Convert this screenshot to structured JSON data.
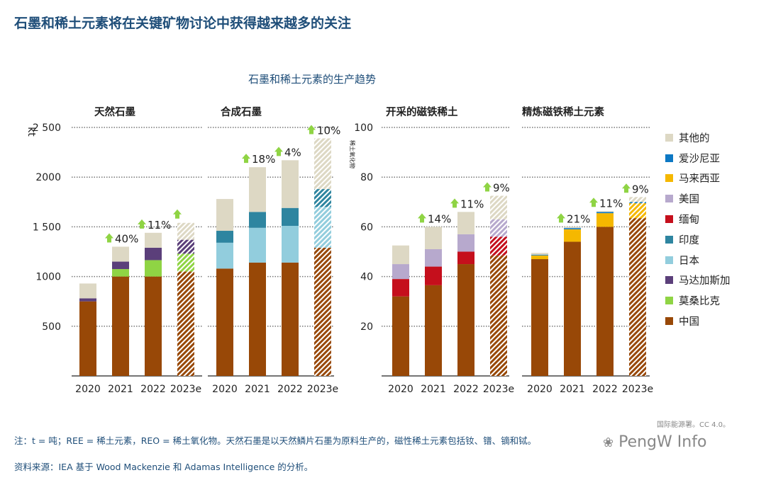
{
  "title": "石墨和稀土元素将在关键矿物讨论中获得越来越多的关注",
  "subtitle": "石墨和稀土元素的生产趋势",
  "chart_data": [
    {
      "type": "bar",
      "stacked": true,
      "title": "天然石墨",
      "ylabel": "kt",
      "ylim": [
        0,
        2500
      ],
      "yticks": [
        "2 500",
        "2000",
        "1 500",
        "1000",
        "500"
      ],
      "categories": [
        "2020",
        "2021",
        "2022",
        "2023e"
      ],
      "estimated": [
        false,
        false,
        false,
        true
      ],
      "series": [
        {
          "name": "中国",
          "values": [
            750,
            1000,
            1000,
            1050
          ]
        },
        {
          "name": "莫桑比克",
          "values": [
            0,
            75,
            165,
            180
          ]
        },
        {
          "name": "马达加斯加",
          "values": [
            30,
            75,
            125,
            140
          ]
        },
        {
          "name": "其他的",
          "values": [
            150,
            150,
            150,
            170
          ]
        }
      ],
      "growth": [
        "",
        "40%",
        "11%",
        ""
      ]
    },
    {
      "type": "bar",
      "stacked": true,
      "title": "合成石墨",
      "ylim": [
        0,
        2500
      ],
      "categories": [
        "2020",
        "2021",
        "2022",
        "2023e"
      ],
      "estimated": [
        false,
        false,
        false,
        true
      ],
      "series": [
        {
          "name": "中国",
          "values": [
            1080,
            1140,
            1140,
            1290
          ]
        },
        {
          "name": "日本",
          "values": [
            260,
            350,
            370,
            410
          ]
        },
        {
          "name": "印度",
          "values": [
            120,
            160,
            180,
            180
          ]
        },
        {
          "name": "其他的",
          "values": [
            320,
            450,
            480,
            510
          ]
        }
      ],
      "growth": [
        "",
        "18%",
        "4%",
        "10%"
      ]
    },
    {
      "type": "bar",
      "stacked": true,
      "title": "开采的磁铁稀土",
      "ylabel": "稀土氧化物",
      "ylim": [
        0,
        100
      ],
      "yticks": [
        "100",
        "80",
        "60",
        "40",
        "20"
      ],
      "categories": [
        "2020",
        "2021",
        "2022",
        "2023e"
      ],
      "estimated": [
        false,
        false,
        false,
        true
      ],
      "series": [
        {
          "name": "中国",
          "values": [
            32,
            36.5,
            45,
            48.5
          ]
        },
        {
          "name": "缅甸",
          "values": [
            7,
            7.5,
            5,
            7.5
          ]
        },
        {
          "name": "美国",
          "values": [
            6,
            7,
            7,
            7
          ]
        },
        {
          "name": "其他的",
          "values": [
            7.5,
            9,
            9,
            9.5
          ]
        }
      ],
      "growth": [
        "",
        "14%",
        "11%",
        "9%"
      ]
    },
    {
      "type": "bar",
      "stacked": true,
      "title": "精炼磁铁稀土元素",
      "ylim": [
        0,
        100
      ],
      "categories": [
        "2020",
        "2021",
        "2022",
        "2023e"
      ],
      "estimated": [
        false,
        false,
        false,
        true
      ],
      "series": [
        {
          "name": "中国",
          "values": [
            47,
            54,
            60,
            63.5
          ]
        },
        {
          "name": "马来西亚",
          "values": [
            1.5,
            5,
            5.5,
            6
          ]
        },
        {
          "name": "爱沙尼亚",
          "values": [
            0.3,
            0.5,
            0.5,
            0.5
          ]
        },
        {
          "name": "其他的",
          "values": [
            0.7,
            0.5,
            0.3,
            2
          ]
        }
      ],
      "growth": [
        "",
        "21%",
        "11%",
        "9%"
      ]
    }
  ],
  "legend": [
    {
      "name": "其他的",
      "color": "#ddd8c4"
    },
    {
      "name": "爱沙尼亚",
      "color": "#0d78c4"
    },
    {
      "name": "马来西亚",
      "color": "#f5b800"
    },
    {
      "name": "美国",
      "color": "#b7a9cd"
    },
    {
      "name": "缅甸",
      "color": "#c50f1c"
    },
    {
      "name": "印度",
      "color": "#2e85a0"
    },
    {
      "name": "日本",
      "color": "#92cddd"
    },
    {
      "name": "马达加斯加",
      "color": "#5b3f7a"
    },
    {
      "name": "莫桑比克",
      "color": "#8fd444"
    },
    {
      "name": "中国",
      "color": "#984807"
    }
  ],
  "note": "注：t = 吨；REE = 稀土元素，REO = 稀土氧化物。天然石墨是以天然鳞片石墨为原料生产的，磁性稀土元素包括钕、镨、镝和铽。",
  "source": "资料来源：IEA 基于 Wood Mackenzie 和 Adamas Intelligence 的分析。",
  "license": "国际能源署。CC 4.0。",
  "watermark": "PengW Info"
}
